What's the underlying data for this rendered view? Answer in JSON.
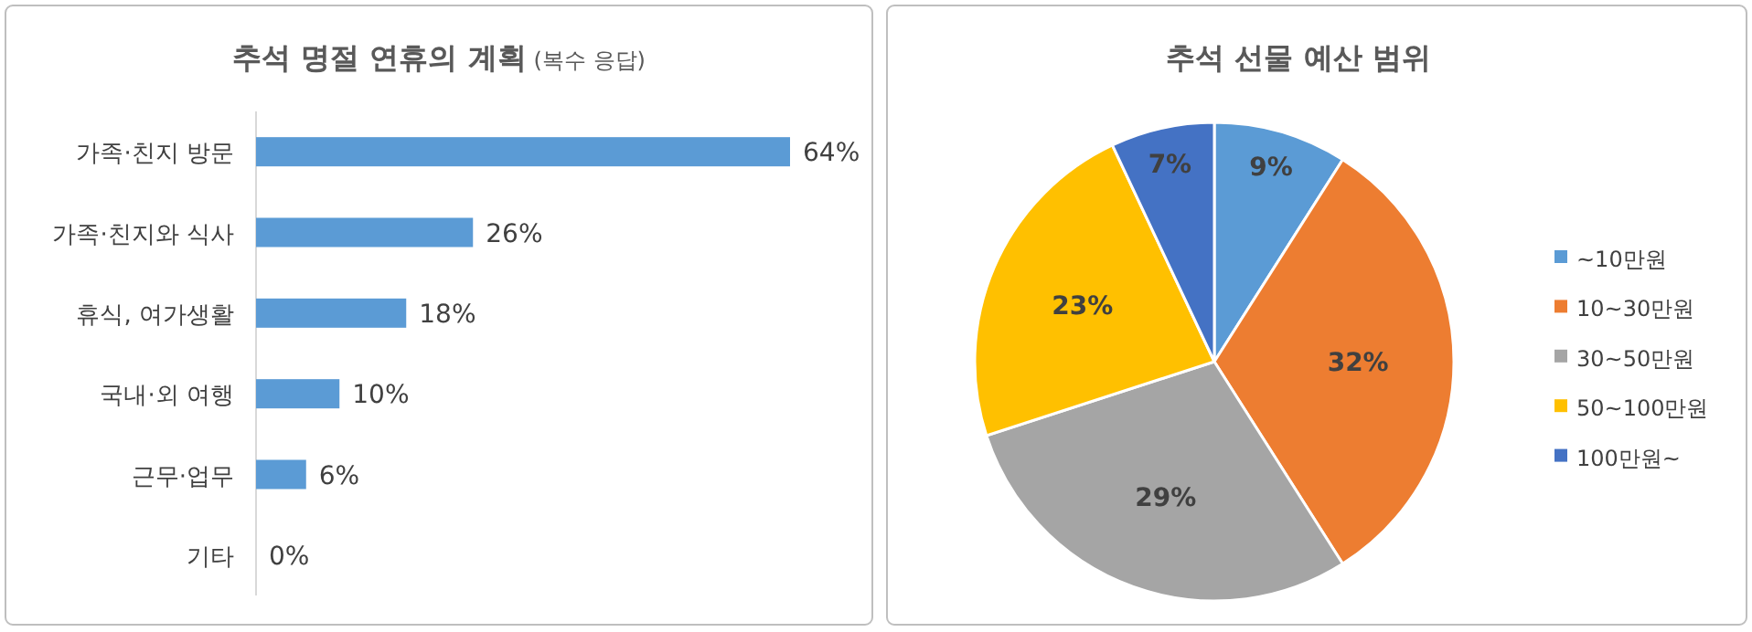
{
  "chart_data": [
    {
      "type": "bar",
      "orientation": "horizontal",
      "title": "추석 명절 연휴의 계획",
      "subtitle": "(복수 응답)",
      "categories": [
        "가족·친지 방문",
        "가족·친지와 식사",
        "휴식, 여가생활",
        "국내·외 여행",
        "근무·업무",
        "기타"
      ],
      "values": [
        64,
        26,
        18,
        10,
        6,
        0
      ],
      "value_labels": [
        "64%",
        "26%",
        "18%",
        "10%",
        "6%",
        "0%"
      ],
      "color": "#5b9bd5"
    },
    {
      "type": "pie",
      "title": "추석 선물 예산 범위",
      "categories": [
        "~10만원",
        "10~30만원",
        "30~50만원",
        "50~100만원",
        "100만원~"
      ],
      "values": [
        9,
        32,
        29,
        23,
        7
      ],
      "value_labels": [
        "9%",
        "32%",
        "29%",
        "23%",
        "7%"
      ],
      "colors": [
        "#5b9bd5",
        "#ed7d31",
        "#a5a5a5",
        "#ffc000",
        "#4472c4"
      ],
      "legend": "right"
    }
  ]
}
